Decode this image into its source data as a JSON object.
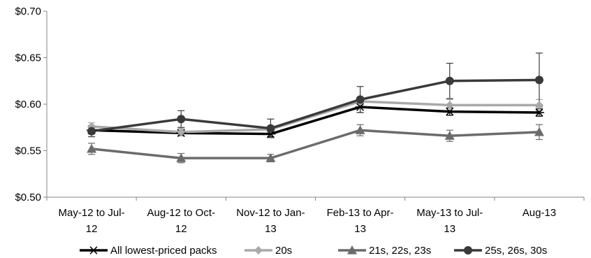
{
  "chart_data": {
    "type": "line",
    "title": "",
    "xlabel": "",
    "ylabel": "",
    "ylim": [
      0.5,
      0.7
    ],
    "yticks": [
      {
        "value": 0.5,
        "label": "$0.50"
      },
      {
        "value": 0.55,
        "label": "$0.55"
      },
      {
        "value": 0.6,
        "label": "$0.60"
      },
      {
        "value": 0.65,
        "label": "$0.65"
      },
      {
        "value": 0.7,
        "label": "$0.70"
      }
    ],
    "categories": [
      [
        "May-12 to Jul-",
        "12"
      ],
      [
        "Aug-12 to Oct-",
        "12"
      ],
      [
        "Nov-12 to Jan-",
        "13"
      ],
      [
        "Feb-13 to Apr-",
        "13"
      ],
      [
        "May-13 to Jul-",
        "13"
      ],
      [
        "Aug-13"
      ]
    ],
    "grid": false,
    "legend": "bottom",
    "series": [
      {
        "name": "All lowest-priced packs",
        "marker": "asterisk",
        "color": "#000000",
        "values": [
          0.572,
          0.569,
          0.568,
          0.597,
          0.592,
          0.591
        ],
        "error": [
          0.004,
          0.003,
          0.003,
          0.006,
          0.004,
          0.004
        ]
      },
      {
        "name": "20s",
        "marker": "diamond",
        "color": "#a9a9a9",
        "values": [
          0.576,
          0.57,
          0.573,
          0.603,
          0.599,
          0.599
        ],
        "error": [
          0.004,
          0.004,
          0.003,
          0.004,
          0.006,
          0.006
        ]
      },
      {
        "name": "21s, 22s, 23s",
        "marker": "triangle",
        "color": "#6b6b6b",
        "values": [
          0.552,
          0.542,
          0.542,
          0.572,
          0.566,
          0.57
        ],
        "error": [
          0.006,
          0.005,
          0.004,
          0.006,
          0.006,
          0.008
        ]
      },
      {
        "name": "25s, 26s, 30s",
        "marker": "circle",
        "color": "#3a3a3a",
        "values": [
          0.571,
          0.584,
          0.574,
          0.605,
          0.625,
          0.626
        ],
        "error": [
          0.006,
          0.009,
          0.01,
          0.014,
          0.019,
          0.029
        ]
      }
    ]
  }
}
